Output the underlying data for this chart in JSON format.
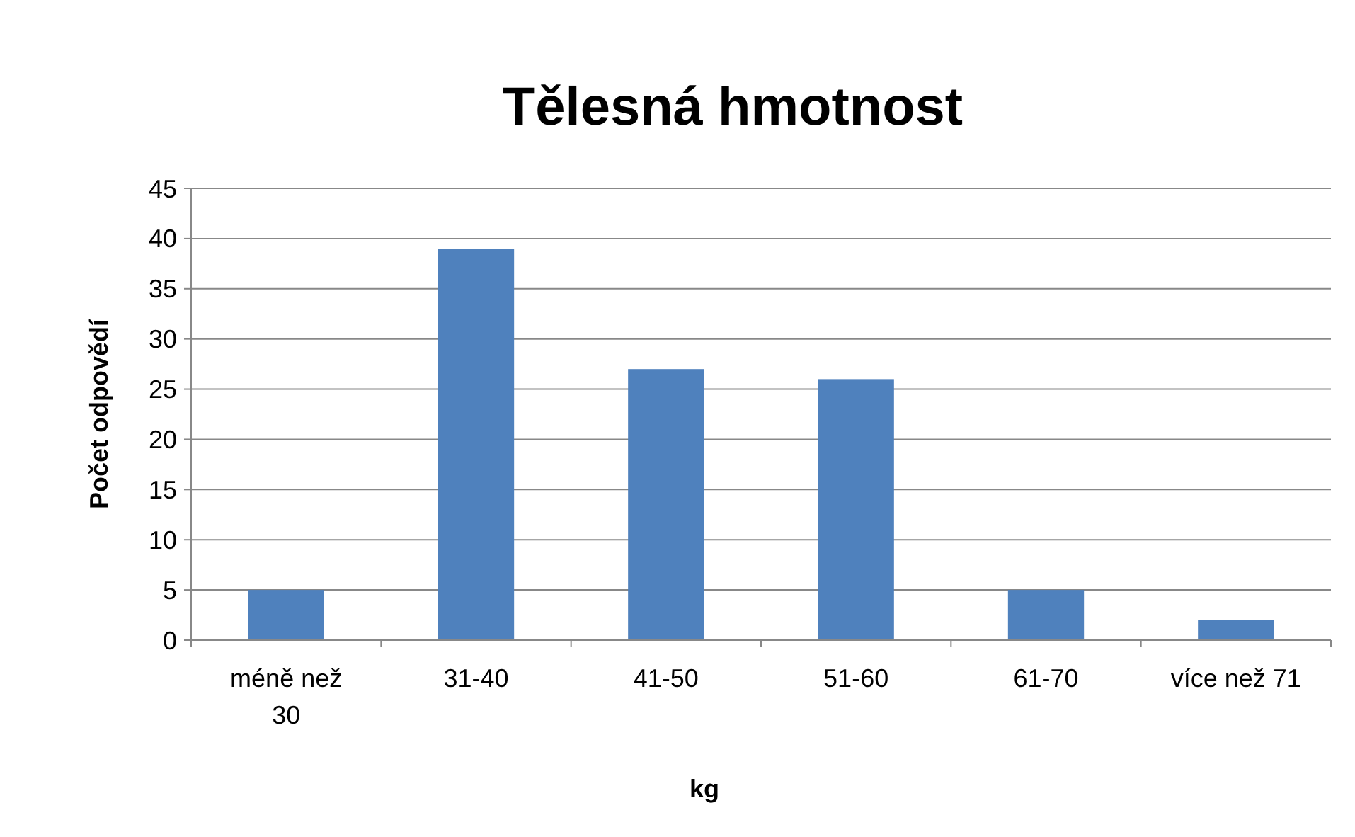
{
  "chart_data": {
    "type": "bar",
    "title": "Tělesná hmotnost",
    "xlabel": "kg",
    "ylabel": "Počet odpovědí",
    "categories": [
      "méně než 30",
      "31-40",
      "41-50",
      "51-60",
      "61-70",
      "více než 71"
    ],
    "values": [
      5,
      39,
      27,
      26,
      5,
      2
    ],
    "color": "#4f81bd",
    "ylim": [
      0,
      45
    ],
    "yticks": [
      0,
      5,
      10,
      15,
      20,
      25,
      30,
      35,
      40,
      45
    ],
    "grid": "y"
  }
}
